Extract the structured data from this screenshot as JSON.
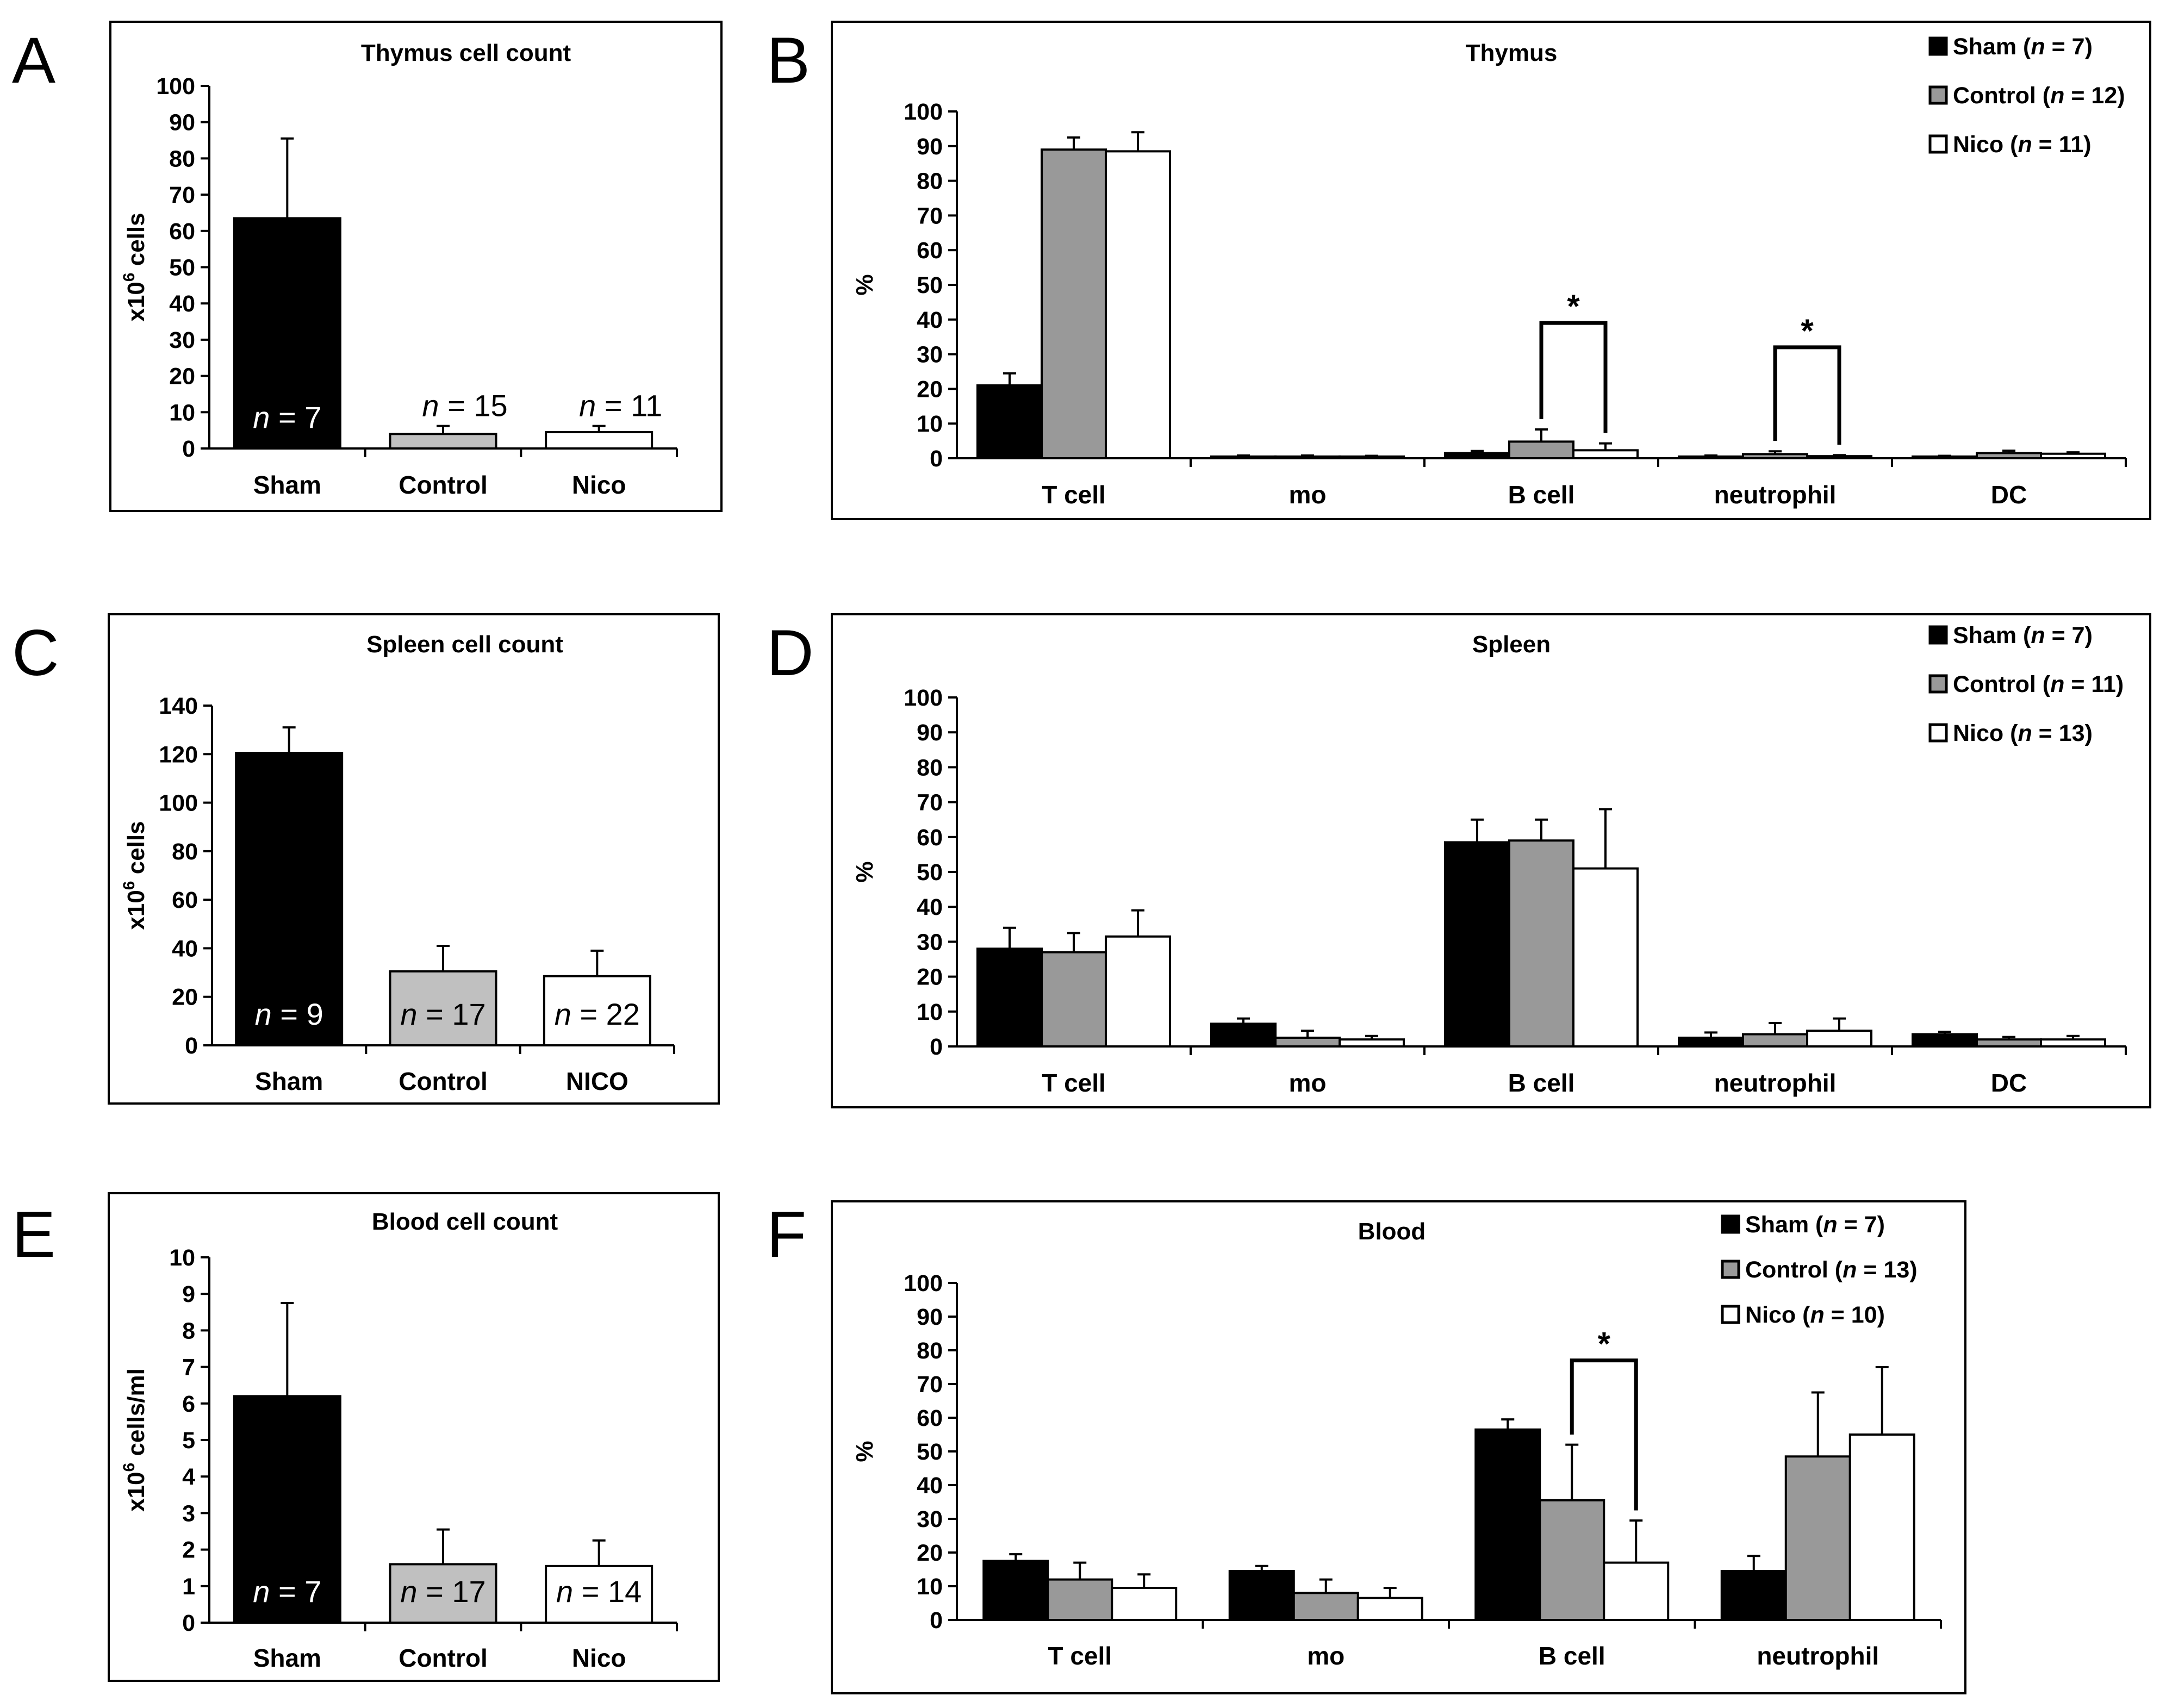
{
  "figure": {
    "panels": [
      "A",
      "B",
      "C",
      "D",
      "E",
      "F"
    ]
  },
  "colors": {
    "sham": "#000000",
    "control": "#999999",
    "control_light": "#c0c0c0",
    "nico": "#ffffff"
  },
  "chart_data": [
    {
      "id": "A",
      "type": "bar",
      "title": "Thymus cell count",
      "ylabel_parts": [
        "x10",
        "6",
        " cells"
      ],
      "categories": [
        "Sham",
        "Control",
        "Nico"
      ],
      "values": [
        63.5,
        4,
        4.5
      ],
      "errors": [
        22,
        2.2,
        1.7
      ],
      "n_labels": [
        "n = 7",
        "n = 15",
        "n = 11"
      ],
      "ylim": [
        0,
        100
      ],
      "yticks": [
        "0",
        "10",
        "20",
        "30",
        "40",
        "50",
        "60",
        "70",
        "80",
        "90",
        "100"
      ]
    },
    {
      "id": "B",
      "type": "bar",
      "title": "Thymus",
      "ylabel": "%",
      "categories": [
        "T cell",
        "mo",
        "B cell",
        "neutrophil",
        "DC"
      ],
      "ylim": [
        0,
        100
      ],
      "yticks": [
        "0",
        "10",
        "20",
        "30",
        "40",
        "50",
        "60",
        "70",
        "80",
        "90",
        "100"
      ],
      "series": [
        {
          "name": "Sham",
          "n": "7",
          "values": [
            21,
            0.5,
            1.5,
            0.5,
            0.5
          ],
          "errors": [
            3.5,
            0.3,
            0.6,
            0.3,
            0.2
          ]
        },
        {
          "name": "Control",
          "n": "12",
          "values": [
            89,
            0.5,
            4.8,
            1.2,
            1.5
          ],
          "errors": [
            3.5,
            0.3,
            3.5,
            0.8,
            0.7
          ]
        },
        {
          "name": "Nico",
          "n": "11",
          "values": [
            88.5,
            0.5,
            2.3,
            0.6,
            1.3
          ],
          "errors": [
            5.5,
            0.2,
            2,
            0.3,
            0.4
          ]
        }
      ],
      "significance": [
        {
          "category": "B cell",
          "from": "Control",
          "to": "Nico",
          "level": 39,
          "mark": "*"
        },
        {
          "category": "neutrophil",
          "from": "Control",
          "to": "Nico",
          "level": 32,
          "mark": "*"
        }
      ]
    },
    {
      "id": "C",
      "type": "bar",
      "title": "Spleen cell count",
      "ylabel_parts": [
        "x10",
        "6",
        " cells"
      ],
      "categories": [
        "Sham",
        "Control",
        "NICO"
      ],
      "values": [
        120.5,
        30.5,
        28.5
      ],
      "errors": [
        10.5,
        10.5,
        10.5
      ],
      "n_labels": [
        "n = 9",
        "n = 17",
        "n = 22"
      ],
      "ylim": [
        0,
        140
      ],
      "yticks": [
        "0",
        "20",
        "40",
        "60",
        "80",
        "100",
        "120",
        "140"
      ]
    },
    {
      "id": "D",
      "type": "bar",
      "title": "Spleen",
      "ylabel": "%",
      "categories": [
        "T cell",
        "mo",
        "B cell",
        "neutrophil",
        "DC"
      ],
      "ylim": [
        0,
        100
      ],
      "yticks": [
        "0",
        "10",
        "20",
        "30",
        "40",
        "50",
        "60",
        "70",
        "80",
        "90",
        "100"
      ],
      "series": [
        {
          "name": "Sham",
          "n": "7",
          "values": [
            28,
            6.5,
            58.5,
            2.5,
            3.5
          ],
          "errors": [
            6,
            1.5,
            6.5,
            1.5,
            0.7
          ]
        },
        {
          "name": "Control",
          "n": "11",
          "values": [
            27,
            2.5,
            59,
            3.5,
            2
          ],
          "errors": [
            5.5,
            2,
            6,
            3.2,
            0.7
          ]
        },
        {
          "name": "Nico",
          "n": "13",
          "values": [
            31.5,
            2,
            51,
            4.5,
            2
          ],
          "errors": [
            7.5,
            1,
            17,
            3.5,
            1
          ]
        }
      ],
      "significance": []
    },
    {
      "id": "E",
      "type": "bar",
      "title": "Blood cell count",
      "ylabel_parts": [
        "x10",
        "6",
        " cells/ml"
      ],
      "categories": [
        "Sham",
        "Control",
        "Nico"
      ],
      "values": [
        6.2,
        1.6,
        1.55
      ],
      "errors": [
        2.55,
        0.95,
        0.7
      ],
      "n_labels": [
        "n = 7",
        "n = 17",
        "n = 14"
      ],
      "ylim": [
        0,
        10
      ],
      "yticks": [
        "0",
        "1",
        "2",
        "3",
        "4",
        "5",
        "6",
        "7",
        "8",
        "9",
        "10"
      ]
    },
    {
      "id": "F",
      "type": "bar",
      "title": "Blood",
      "ylabel": "%",
      "categories": [
        "T cell",
        "mo",
        "B cell",
        "neutrophil"
      ],
      "ylim": [
        0,
        100
      ],
      "yticks": [
        "0",
        "10",
        "20",
        "30",
        "40",
        "50",
        "60",
        "70",
        "80",
        "90",
        "100"
      ],
      "series": [
        {
          "name": "Sham",
          "n": "7",
          "values": [
            17.5,
            14.5,
            56.5,
            14.5
          ],
          "errors": [
            2,
            1.5,
            3,
            4.5
          ]
        },
        {
          "name": "Control",
          "n": "13",
          "values": [
            12,
            8,
            35.5,
            48.5
          ],
          "errors": [
            5,
            4,
            16.5,
            19
          ]
        },
        {
          "name": "Nico",
          "n": "10",
          "values": [
            9.5,
            6.5,
            17,
            55
          ],
          "errors": [
            4,
            3,
            12.5,
            20
          ]
        }
      ],
      "significance": [
        {
          "category": "B cell",
          "from": "Control",
          "to": "Nico",
          "level": 77,
          "mark": "*"
        }
      ]
    }
  ]
}
